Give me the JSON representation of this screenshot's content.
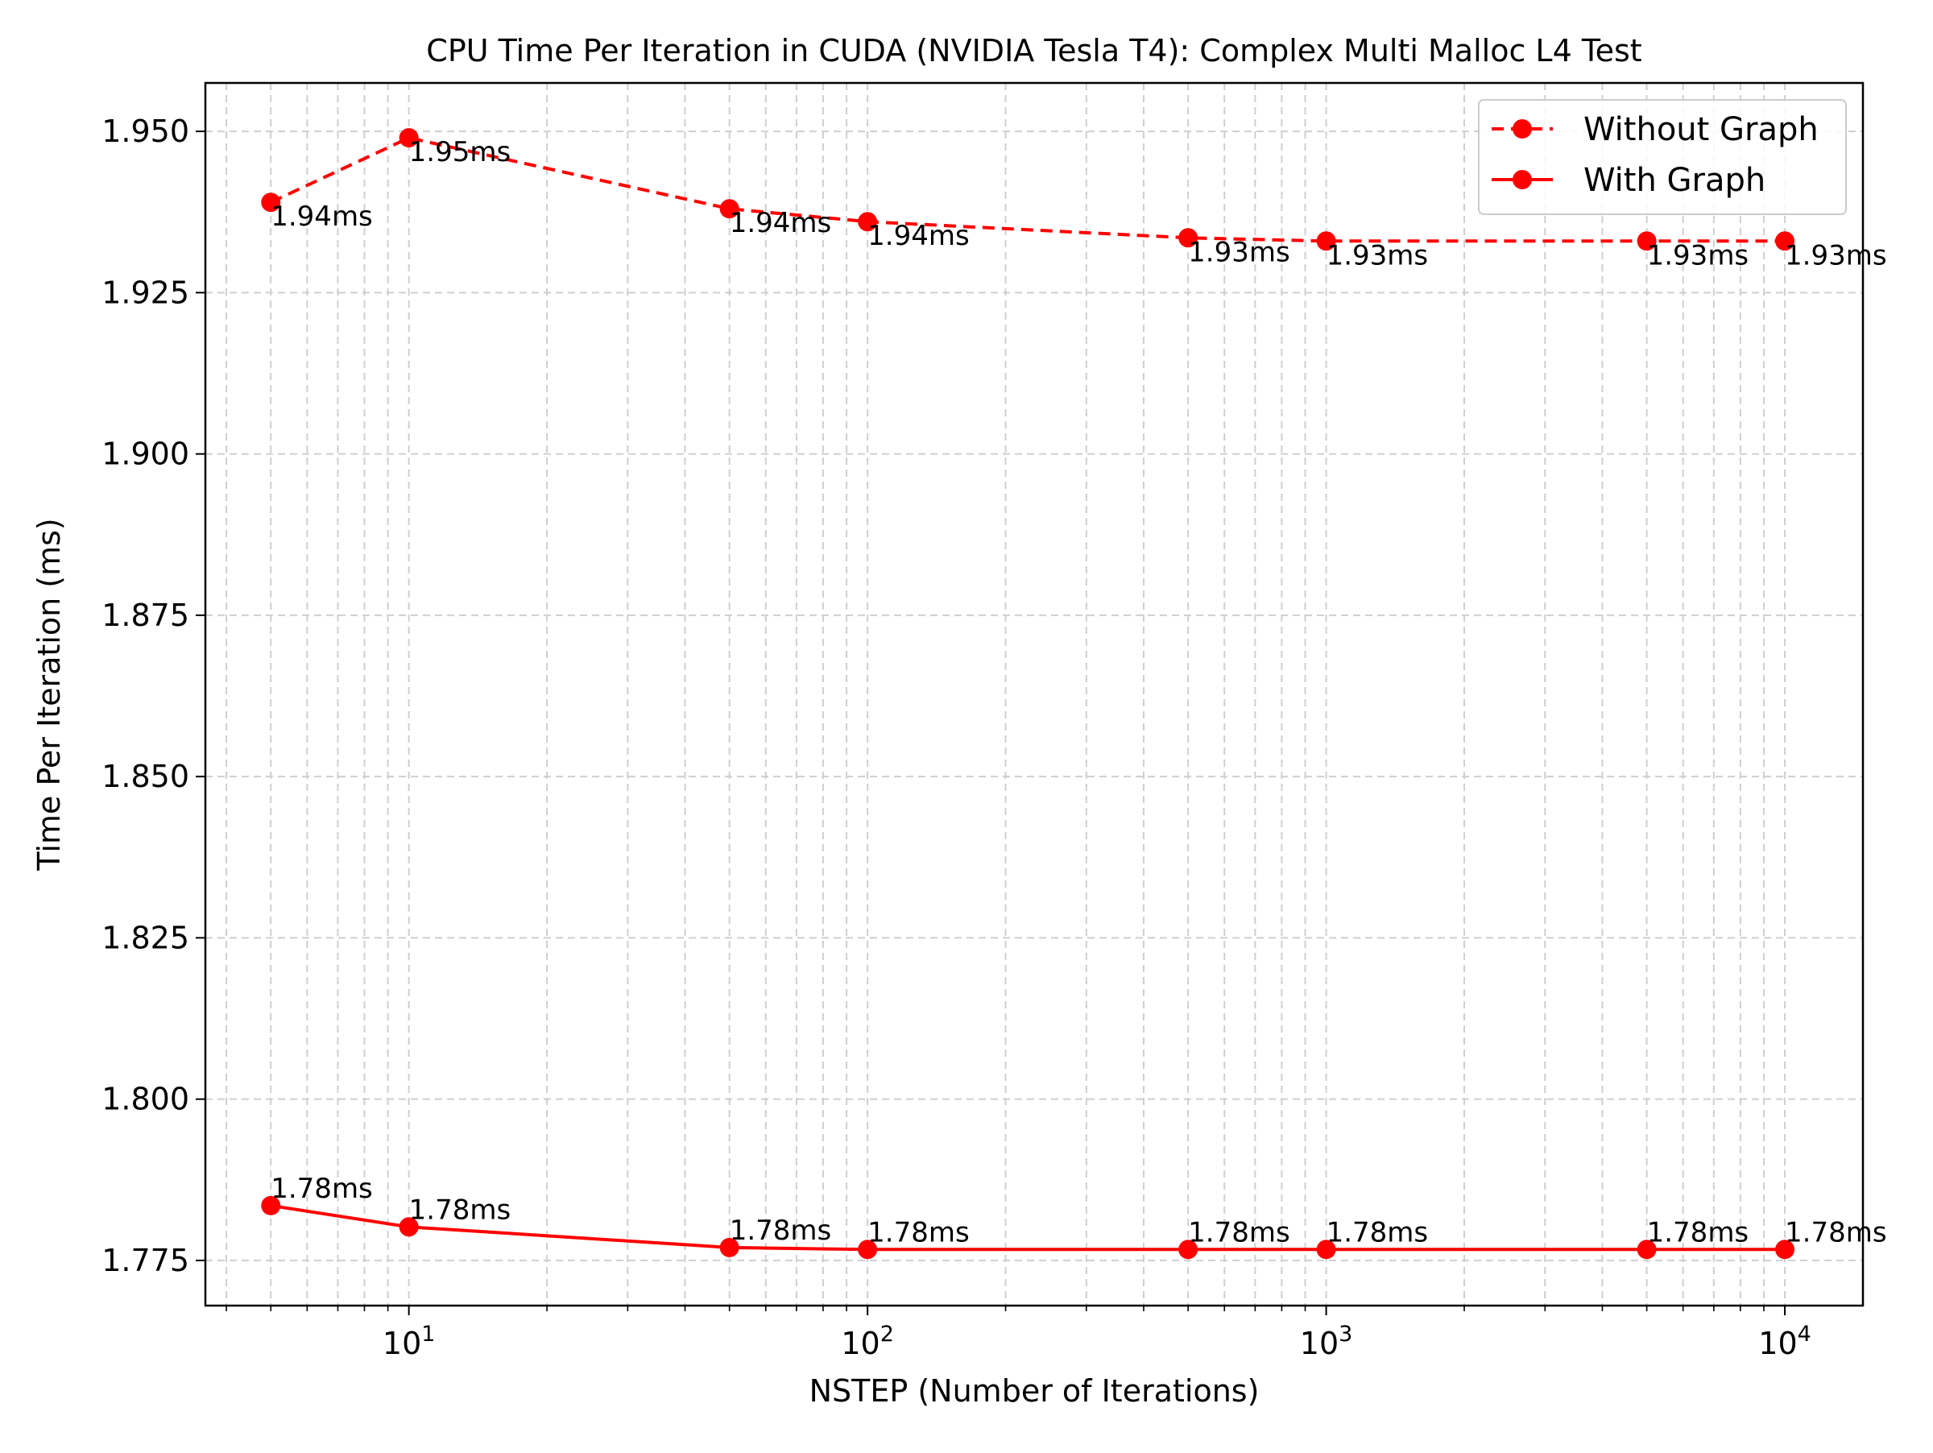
{
  "chart_data": {
    "type": "line",
    "title": "CPU Time Per Iteration in CUDA (NVIDIA Tesla T4): Complex Multi Malloc L4 Test",
    "xlabel": "NSTEP (Number of Iterations)",
    "ylabel": "Time Per Iteration (ms)",
    "xscale": "log",
    "xlim": [
      3.6,
      14800
    ],
    "ylim": [
      1.768,
      1.9575
    ],
    "x": [
      5,
      10,
      50,
      100,
      500,
      1000,
      5000,
      10000
    ],
    "x_ticks": [
      {
        "value": 10,
        "base": "10",
        "exp": "1"
      },
      {
        "value": 100,
        "base": "10",
        "exp": "2"
      },
      {
        "value": 1000,
        "base": "10",
        "exp": "3"
      },
      {
        "value": 10000,
        "base": "10",
        "exp": "4"
      }
    ],
    "y_ticks": [
      {
        "value": 1.775,
        "label": "1.775"
      },
      {
        "value": 1.8,
        "label": "1.800"
      },
      {
        "value": 1.825,
        "label": "1.825"
      },
      {
        "value": 1.85,
        "label": "1.850"
      },
      {
        "value": 1.875,
        "label": "1.875"
      },
      {
        "value": 1.9,
        "label": "1.900"
      },
      {
        "value": 1.925,
        "label": "1.925"
      },
      {
        "value": 1.95,
        "label": "1.950"
      }
    ],
    "grid": true,
    "legend_position": "top-right",
    "series": [
      {
        "name": "Without Graph",
        "line_style": "dashed",
        "marker": "circle",
        "color": "#ff0000",
        "values": [
          1.939,
          1.949,
          1.938,
          1.936,
          1.9335,
          1.933,
          1.933,
          1.933
        ],
        "labels": [
          "1.94ms",
          "1.95ms",
          "1.94ms",
          "1.94ms",
          "1.93ms",
          "1.93ms",
          "1.93ms",
          "1.93ms"
        ],
        "label_placement": "below"
      },
      {
        "name": "With Graph",
        "line_style": "solid",
        "marker": "circle",
        "color": "#ff0000",
        "values": [
          1.7835,
          1.7802,
          1.777,
          1.7767,
          1.7767,
          1.7767,
          1.7767,
          1.7767
        ],
        "labels": [
          "1.78ms",
          "1.78ms",
          "1.78ms",
          "1.78ms",
          "1.78ms",
          "1.78ms",
          "1.78ms",
          "1.78ms"
        ],
        "label_placement": "above"
      }
    ]
  }
}
